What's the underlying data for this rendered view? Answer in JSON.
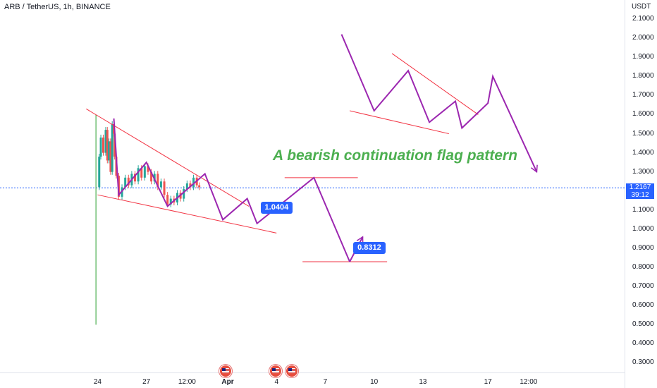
{
  "header": {
    "symbol_line": "ARB / TetherUS, 1h, BINANCE",
    "unit": "USDT"
  },
  "price_badge": {
    "price": "1.2167",
    "countdown": "39:12"
  },
  "annotation_title": "A bearish continuation flag pattern",
  "callouts": [
    {
      "label": "1.0404",
      "value": 1.0404
    },
    {
      "label": "0.8312",
      "value": 0.8312
    }
  ],
  "colors": {
    "candle_up": "#26a69a",
    "candle_down": "#ef5350",
    "projection": "#9c27b0",
    "trendline": "#f23645",
    "title": "#4caf50",
    "badge": "#2962ff",
    "pole": "#4caf50",
    "current_price_line": "#2962ff"
  },
  "chart_data": {
    "type": "line",
    "y_axis": {
      "unit": "USDT",
      "ticks": [
        "2.1000",
        "2.0000",
        "1.9000",
        "1.8000",
        "1.7000",
        "1.6000",
        "1.5000",
        "1.4000",
        "1.3000",
        "1.2000",
        "1.1000",
        "1.0000",
        "0.9000",
        "0.8000",
        "0.7000",
        "0.6000",
        "0.5000",
        "0.4000",
        "0.3000"
      ],
      "ylim": [
        0.25,
        2.2
      ]
    },
    "x_axis": {
      "ticks": [
        {
          "label": "24",
          "pos": 0.0
        },
        {
          "label": "27",
          "pos": 3.0
        },
        {
          "label": "12:00",
          "pos": 5.5
        },
        {
          "label": "Apr",
          "pos": 8.0,
          "bold": true
        },
        {
          "label": "4",
          "pos": 11.0
        },
        {
          "label": "7",
          "pos": 14.0
        },
        {
          "label": "10",
          "pos": 17.0
        },
        {
          "label": "13",
          "pos": 20.0
        },
        {
          "label": "17",
          "pos": 24.0
        },
        {
          "label": "12:00",
          "pos": 26.5
        }
      ],
      "xlim": [
        -6.0,
        32.4
      ]
    },
    "current_price": 1.2167,
    "price_history": {
      "name": "ARB/USDT",
      "points": [
        [
          -0.1,
          1.22
        ],
        [
          0.1,
          1.38
        ],
        [
          0.2,
          1.48
        ],
        [
          0.35,
          1.4
        ],
        [
          0.5,
          1.52
        ],
        [
          0.6,
          1.36
        ],
        [
          0.7,
          1.46
        ],
        [
          0.8,
          1.3
        ],
        [
          0.9,
          1.55
        ],
        [
          1.0,
          1.5
        ],
        [
          1.05,
          1.38
        ],
        [
          1.15,
          1.28
        ],
        [
          1.3,
          1.17
        ],
        [
          1.5,
          1.22
        ],
        [
          1.7,
          1.27
        ],
        [
          1.9,
          1.23
        ],
        [
          2.1,
          1.29
        ],
        [
          2.3,
          1.25
        ],
        [
          2.5,
          1.32
        ],
        [
          2.7,
          1.27
        ],
        [
          2.9,
          1.33
        ],
        [
          3.1,
          1.3
        ],
        [
          3.3,
          1.25
        ],
        [
          3.5,
          1.29
        ],
        [
          3.7,
          1.22
        ],
        [
          3.9,
          1.25
        ],
        [
          4.1,
          1.18
        ],
        [
          4.3,
          1.13
        ],
        [
          4.5,
          1.16
        ],
        [
          4.7,
          1.14
        ],
        [
          4.9,
          1.19
        ],
        [
          5.1,
          1.16
        ],
        [
          5.3,
          1.21
        ],
        [
          5.5,
          1.24
        ],
        [
          5.7,
          1.22
        ],
        [
          5.9,
          1.27
        ],
        [
          6.1,
          1.23
        ],
        [
          6.25,
          1.22
        ]
      ]
    },
    "pole": {
      "x": -0.1,
      "y_range": [
        0.5,
        1.6
      ]
    },
    "projection_path": {
      "name": "projected path",
      "points": [
        [
          1.0,
          1.58
        ],
        [
          1.1,
          1.42
        ],
        [
          1.3,
          1.18
        ],
        [
          3.0,
          1.35
        ],
        [
          4.3,
          1.12
        ],
        [
          6.6,
          1.29
        ],
        [
          7.7,
          1.05
        ],
        [
          9.2,
          1.16
        ],
        [
          9.8,
          1.03
        ],
        [
          13.3,
          1.27
        ],
        [
          15.5,
          0.83
        ],
        [
          19.1,
          1.66
        ],
        [
          21.8,
          1.45
        ],
        [
          23.0,
          1.57
        ],
        [
          26.9,
          1.45
        ],
        [
          28.8,
          1.1
        ],
        [
          29.8,
          0.95
        ],
        [
          30.5,
          0.85
        ],
        [
          31.5,
          1.8
        ],
        [
          33.0,
          2.1
        ]
      ],
      "segments": [
        [
          [
            1.0,
            1.58
          ],
          [
            1.3,
            1.18
          ],
          [
            3.0,
            1.35
          ],
          [
            4.3,
            1.12
          ],
          [
            6.6,
            1.29
          ],
          [
            7.7,
            1.05
          ],
          [
            9.2,
            1.16
          ],
          [
            9.8,
            1.03
          ],
          [
            13.3,
            1.27
          ],
          [
            15.5,
            0.83
          ]
        ],
        [
          [
            15.5,
            0.83
          ],
          [
            16.3,
            0.96
          ]
        ],
        [
          [
            15.0,
            2.02
          ],
          [
            17.0,
            1.62
          ],
          [
            19.1,
            1.83
          ],
          [
            20.4,
            1.56
          ],
          [
            22.0,
            1.67
          ],
          [
            22.4,
            1.53
          ],
          [
            24.0,
            1.66
          ],
          [
            24.3,
            1.8
          ],
          [
            27.0,
            1.3
          ]
        ]
      ]
    },
    "trendlines": [
      {
        "name": "upper channel A",
        "points": [
          [
            -0.7,
            1.63
          ],
          [
            9.3,
            1.12
          ]
        ]
      },
      {
        "name": "lower channel A",
        "points": [
          [
            0.0,
            1.18
          ],
          [
            11.0,
            0.98
          ]
        ]
      },
      {
        "name": "upper channel B",
        "points": [
          [
            18.1,
            1.92
          ],
          [
            23.4,
            1.6
          ]
        ]
      },
      {
        "name": "lower channel B",
        "points": [
          [
            15.5,
            1.62
          ],
          [
            21.6,
            1.5
          ]
        ]
      },
      {
        "name": "resistance level",
        "points": [
          [
            11.5,
            1.27
          ],
          [
            16.0,
            1.27
          ]
        ]
      },
      {
        "name": "support level",
        "points": [
          [
            12.6,
            0.83
          ],
          [
            17.8,
            0.83
          ]
        ]
      }
    ]
  }
}
